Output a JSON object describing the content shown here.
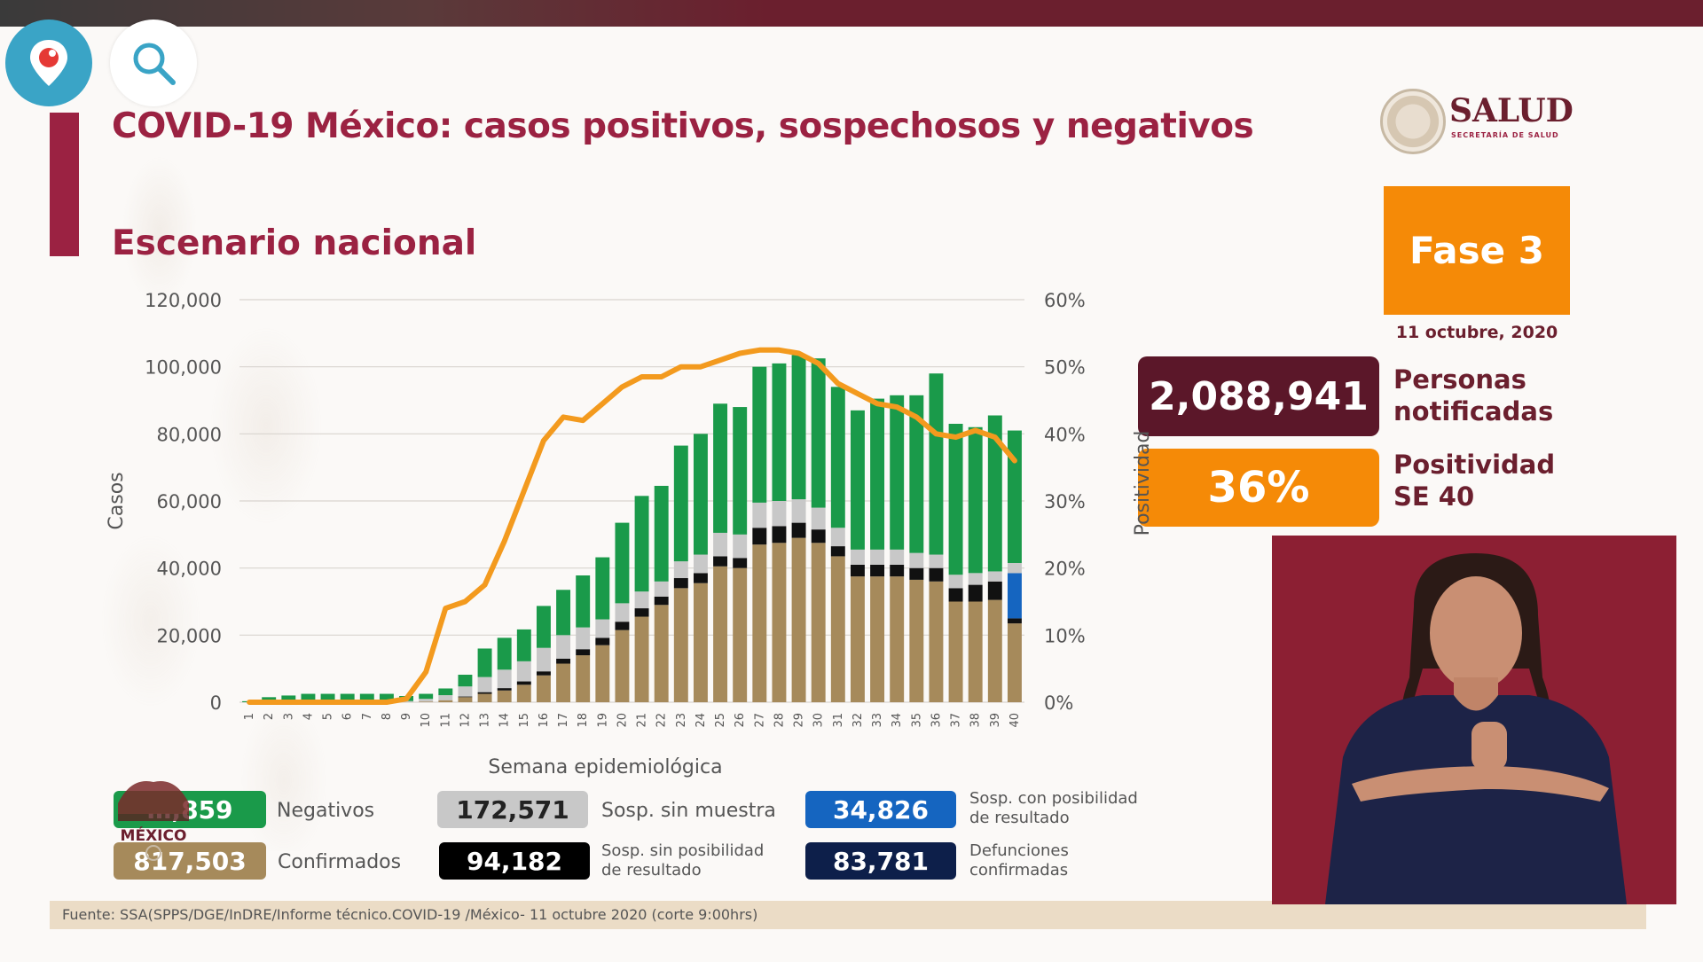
{
  "header": {
    "title": "COVID-19 México: casos positivos, sospechosos y negativos",
    "subtitle": "Escenario nacional"
  },
  "logo": {
    "name": "SALUD",
    "sub": "SECRETARÍA DE SALUD",
    "mexico_text": "MÉXICO"
  },
  "phase": {
    "label": "Fase 3",
    "date": "11 octubre, 2020"
  },
  "stats": [
    {
      "value": "2,088,941",
      "label_line1": "Personas",
      "label_line2": "notificadas"
    },
    {
      "value": "36%",
      "label_line1": "Positividad",
      "label_line2": "SE 40"
    }
  ],
  "legend": [
    {
      "value": "…,859",
      "label": "Negativos",
      "color": "#1a9a4a"
    },
    {
      "value": "817,503",
      "label": "Confirmados",
      "color": "#a68a5b"
    },
    {
      "value": "172,571",
      "label": "Sosp. sin muestra",
      "color": "#c8c8c8"
    },
    {
      "value": "94,182",
      "label_line1": "Sosp. sin posibilidad",
      "label_line2": "de resultado",
      "color": "#000000"
    },
    {
      "value": "34,826",
      "label_line1": "Sosp. con posibilidad",
      "label_line2": "de resultado",
      "color": "#1565c0"
    },
    {
      "value": "83,781",
      "label_line1": "Defunciones",
      "label_line2": "confirmadas",
      "color": "#0d1f4a"
    }
  ],
  "footer": {
    "source": "Fuente: SSA(SPPS/DGE/InDRE/Informe técnico.COVID-19 /México- 11 octubre 2020 (corte 9:00hrs)"
  },
  "colors": {
    "negativos": "#1a9a4a",
    "confirmados": "#a68a5b",
    "sin_muestra": "#c8c8c8",
    "sin_posibilidad": "#111111",
    "con_posibilidad": "#1565c0",
    "positividad_line": "#f39a1e",
    "accent": "#9b2242"
  },
  "chart_data": {
    "type": "bar",
    "stacked": true,
    "x": [
      "1",
      "2",
      "3",
      "4",
      "5",
      "6",
      "7",
      "8",
      "9",
      "10",
      "11",
      "12",
      "13",
      "14",
      "15",
      "16",
      "17",
      "18",
      "19",
      "20",
      "21",
      "22",
      "23",
      "24",
      "25",
      "26",
      "27",
      "28",
      "29",
      "30",
      "31",
      "32",
      "33",
      "34",
      "35",
      "36",
      "37",
      "38",
      "39",
      "40"
    ],
    "xlabel": "Semana epidemiológica",
    "ylabel": "Casos",
    "y2label": "Positividad",
    "ylim": [
      0,
      120000
    ],
    "y2lim": [
      0,
      60
    ],
    "yticks": [
      "0",
      "20,000",
      "40,000",
      "60,000",
      "80,000",
      "100,000",
      "120,000"
    ],
    "y2ticks": [
      "0%",
      "10%",
      "20%",
      "30%",
      "40%",
      "50%",
      "60%"
    ],
    "series": [
      {
        "key": "confirmados",
        "values": [
          0,
          0,
          0,
          0,
          0,
          0,
          0,
          0,
          50,
          200,
          600,
          1500,
          2500,
          3500,
          5200,
          8000,
          11500,
          14000,
          17000,
          21500,
          25500,
          29000,
          34000,
          35500,
          40500,
          40000,
          47000,
          47500,
          49000,
          47500,
          43500,
          37500,
          37500,
          37500,
          36500,
          36000,
          30000,
          30000,
          30500,
          23500
        ]
      },
      {
        "key": "sin_posibilidad",
        "values": [
          0,
          0,
          0,
          0,
          0,
          0,
          0,
          0,
          0,
          0,
          0,
          200,
          500,
          700,
          1000,
          1200,
          1500,
          1800,
          2200,
          2500,
          2500,
          2500,
          3000,
          3000,
          3000,
          3000,
          5000,
          5000,
          4500,
          4000,
          3000,
          3500,
          3500,
          3500,
          3500,
          4000,
          4000,
          5000,
          5500,
          1500
        ]
      },
      {
        "key": "con_posibilidad",
        "values": [
          0,
          0,
          0,
          0,
          0,
          0,
          0,
          0,
          0,
          0,
          0,
          0,
          0,
          0,
          0,
          0,
          0,
          0,
          0,
          0,
          0,
          0,
          0,
          0,
          0,
          0,
          0,
          0,
          0,
          0,
          0,
          0,
          0,
          0,
          0,
          0,
          0,
          0,
          0,
          13500
        ]
      },
      {
        "key": "sin_muestra",
        "values": [
          0,
          0,
          0,
          0,
          0,
          0,
          0,
          0,
          300,
          800,
          1500,
          3000,
          4500,
          5500,
          6000,
          7000,
          7000,
          6500,
          5500,
          5500,
          5000,
          4500,
          5000,
          5500,
          7000,
          7000,
          7500,
          7500,
          7000,
          6500,
          5500,
          4500,
          4500,
          4500,
          4500,
          4000,
          4000,
          3500,
          3000,
          3000
        ]
      },
      {
        "key": "negativos",
        "values": [
          300,
          1500,
          2000,
          2500,
          2500,
          2500,
          2500,
          2500,
          1500,
          1500,
          2000,
          3500,
          8500,
          9500,
          9500,
          12500,
          13500,
          15500,
          18500,
          24000,
          28500,
          28500,
          34500,
          36000,
          38500,
          38000,
          40500,
          41000,
          43000,
          44500,
          42000,
          41500,
          45000,
          46000,
          47000,
          54000,
          45000,
          43500,
          46500,
          39500
        ]
      }
    ],
    "line": {
      "name": "Positividad",
      "axis": "right",
      "values": [
        0,
        0,
        0,
        0,
        0,
        0,
        0,
        0,
        0.5,
        4.5,
        14,
        15,
        17.5,
        24,
        31.5,
        39,
        42.5,
        42,
        44.5,
        47,
        48.5,
        48.5,
        50,
        50,
        51,
        52,
        52.5,
        52.5,
        52,
        50.5,
        47.5,
        46,
        44.5,
        44,
        42.5,
        40,
        39.5,
        40.5,
        39.5,
        36
      ]
    },
    "grid": true
  }
}
